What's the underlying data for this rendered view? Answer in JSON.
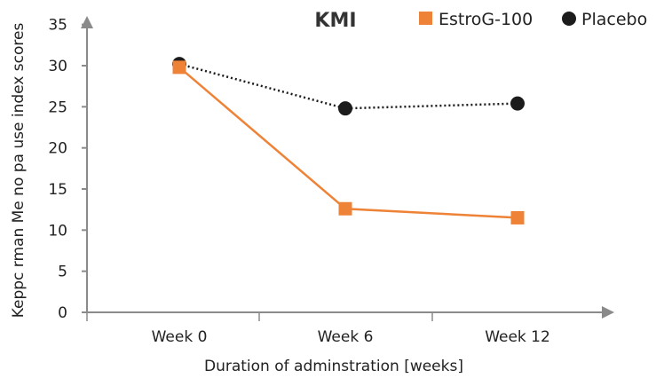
{
  "chart_data": {
    "type": "line",
    "title": "KMI",
    "xlabel": "Duration of adminstration [weeks]",
    "ylabel": "Keppc rman Me no pa use index scores",
    "categories": [
      "Week 0",
      "Week 6",
      "Week 12"
    ],
    "ylim": [
      0,
      35
    ],
    "yticks": [
      0,
      5,
      10,
      15,
      20,
      25,
      30,
      35
    ],
    "grid": false,
    "legend_position": "top-right",
    "series": [
      {
        "name": "EstroG-100",
        "values": [
          29.8,
          12.6,
          11.5
        ],
        "color": "#ee8236",
        "marker": "square",
        "line_style": "solid"
      },
      {
        "name": "Placebo",
        "values": [
          30.2,
          24.8,
          25.4
        ],
        "color": "#1c1c1c",
        "marker": "circle",
        "line_style": "dotted"
      }
    ]
  }
}
